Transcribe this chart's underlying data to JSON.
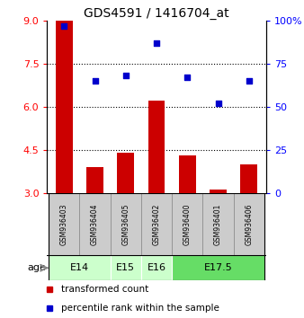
{
  "title": "GDS4591 / 1416704_at",
  "samples": [
    "GSM936403",
    "GSM936404",
    "GSM936405",
    "GSM936402",
    "GSM936400",
    "GSM936401",
    "GSM936406"
  ],
  "transformed_count": [
    9.0,
    3.9,
    4.4,
    6.2,
    4.3,
    3.1,
    4.0
  ],
  "percentile_rank": [
    97,
    65,
    68,
    87,
    67,
    52,
    65
  ],
  "left_ylim": [
    3,
    9
  ],
  "left_yticks": [
    3,
    4.5,
    6,
    7.5,
    9
  ],
  "right_ylim": [
    0,
    100
  ],
  "right_yticks": [
    0,
    25,
    50,
    75,
    100
  ],
  "bar_color": "#cc0000",
  "dot_color": "#0000cc",
  "bar_width": 0.55,
  "hline_values": [
    7.5,
    6.0,
    4.5
  ],
  "age_groups": [
    {
      "label": "E14",
      "span": [
        0,
        2
      ],
      "color": "#ccffcc"
    },
    {
      "label": "E15",
      "span": [
        2,
        3
      ],
      "color": "#ccffcc"
    },
    {
      "label": "E16",
      "span": [
        3,
        4
      ],
      "color": "#ccffcc"
    },
    {
      "label": "E17.5",
      "span": [
        4,
        7
      ],
      "color": "#66dd66"
    }
  ],
  "legend_bar_label": "transformed count",
  "legend_dot_label": "percentile rank within the sample",
  "age_label": "age",
  "background_color": "#ffffff",
  "sample_box_color": "#cccccc",
  "sample_box_edge": "#888888"
}
